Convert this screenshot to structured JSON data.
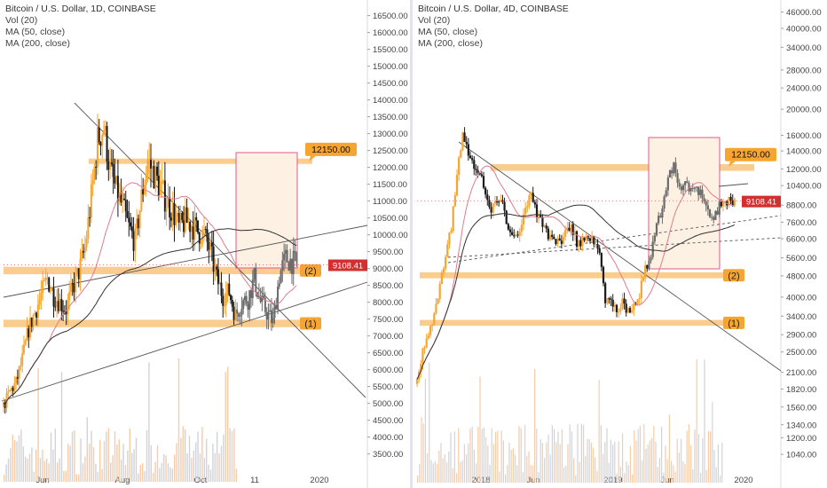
{
  "chart_data": [
    {
      "type": "candlestick",
      "title": "Bitcoin / U.S. Dollar, 1D, COINBASE",
      "indicators": [
        "Vol (20)",
        "MA (50, close)",
        "MA (200, close)"
      ],
      "ylim": [
        3200,
        16700
      ],
      "y_ticks": [
        "16500.00",
        "16000.00",
        "15500.00",
        "15000.00",
        "14500.00",
        "14000.00",
        "13500.00",
        "13000.00",
        "12500.00",
        "12000.00",
        "11500.00",
        "11000.00",
        "10500.00",
        "10000.00",
        "9500.00",
        "9000.00",
        "8500.00",
        "8000.00",
        "7500.00",
        "7000.00",
        "6500.00",
        "6000.00",
        "5500.00",
        "5000.00",
        "4500.00",
        "4000.00",
        "3500.00"
      ],
      "x_ticks": [
        "Jun",
        "Aug",
        "Oct",
        "11",
        "2020"
      ],
      "price_label": "9108.41",
      "price_value": 9108.41,
      "target_label": "12150.00",
      "target_value": 12150,
      "zone_labels": [
        "(2)",
        "(1)"
      ],
      "zones": [
        {
          "label": "(2)",
          "low": 8830,
          "high": 9050
        },
        {
          "label": "(1)",
          "low": 7260,
          "high": 7480
        }
      ],
      "resistance_zone": {
        "low": 12120,
        "high": 12260
      },
      "close_series": [
        4900,
        5350,
        5600,
        6300,
        7200,
        7700,
        8200,
        8700,
        8200,
        8000,
        7800,
        8400,
        8900,
        9600,
        11100,
        12800,
        13200,
        11900,
        11300,
        10800,
        10200,
        9800,
        11100,
        12200,
        11800,
        11400,
        11000,
        10700,
        10200,
        10400,
        10300,
        10100,
        10000,
        9500,
        8700,
        8200,
        8300,
        7600,
        8000,
        8100,
        8700,
        8000,
        7700,
        7400,
        8800,
        9300,
        9200,
        9100
      ]
    },
    {
      "type": "candlestick",
      "title": "Bitcoin / U.S. Dollar, 4D, COINBASE",
      "indicators": [
        "Vol (20)",
        "MA (50, close)",
        "MA (200, close)"
      ],
      "scale": "log",
      "ylim": [
        950,
        48000
      ],
      "y_ticks": [
        "46000.00",
        "40000.00",
        "34000.00",
        "28000.00",
        "24000.00",
        "20000.00",
        "16000.00",
        "14000.00",
        "12000.00",
        "10400.00",
        "8800.00",
        "7600.00",
        "6600.00",
        "5600.00",
        "4800.00",
        "4000.00",
        "3400.00",
        "2900.00",
        "2500.00",
        "2100.00",
        "1820.00",
        "1560.00",
        "1340.00",
        "1200.00",
        "1040.00"
      ],
      "x_ticks": [
        "2018",
        "Jun",
        "2019",
        "Jun",
        "2020"
      ],
      "price_label": "9108.41",
      "price_value": 9108.41,
      "target_label": "12150.00",
      "target_value": 12150,
      "zone_labels": [
        "(2)",
        "(1)"
      ],
      "zones": [
        {
          "label": "(2)",
          "low": 4700,
          "high": 4950
        },
        {
          "label": "(1)",
          "low": 3130,
          "high": 3290
        }
      ],
      "resistance_zone": {
        "low": 11800,
        "high": 12500
      },
      "close_series": [
        1900,
        2500,
        2800,
        3500,
        4300,
        5700,
        7200,
        11000,
        16500,
        14000,
        12500,
        11400,
        10000,
        8400,
        9300,
        8800,
        7000,
        6900,
        7000,
        8600,
        9500,
        8300,
        7400,
        6800,
        6500,
        6400,
        7000,
        7400,
        6400,
        6500,
        6600,
        6500,
        5700,
        3800,
        4000,
        3550,
        3800,
        3500,
        3850,
        4100,
        5100,
        5500,
        7800,
        8200,
        11000,
        12500,
        10000,
        10500,
        10200,
        10000,
        9600,
        8200,
        7900,
        8700,
        9100,
        9200,
        9108
      ]
    }
  ]
}
